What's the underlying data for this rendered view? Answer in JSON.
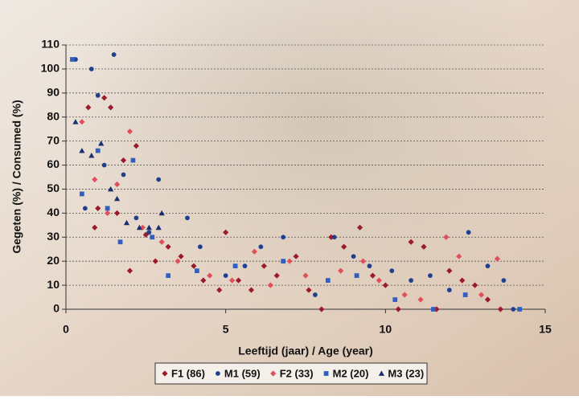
{
  "chart_data": {
    "type": "scatter",
    "xlabel": "Leeftijd (jaar)  / Age (year)",
    "ylabel": "Gegeten (%) / Consumed (%)",
    "xlim": [
      0,
      15
    ],
    "xticks": [
      0,
      5,
      10,
      15
    ],
    "ylim": [
      0,
      110
    ],
    "yticks": [
      0,
      10,
      20,
      30,
      40,
      50,
      60,
      70,
      80,
      90,
      100,
      110
    ],
    "grid": true,
    "legend": "bottom",
    "series": [
      {
        "name": "F1 (86)",
        "color": "#9b1b2a",
        "marker": "diamond",
        "x": [
          0.7,
          0.9,
          1.0,
          1.2,
          1.4,
          1.6,
          1.8,
          2.0,
          2.2,
          2.5,
          2.8,
          3.2,
          3.6,
          4.0,
          4.3,
          4.8,
          5.0,
          5.4,
          5.8,
          6.2,
          6.6,
          7.2,
          7.6,
          8.0,
          8.3,
          8.7,
          9.2,
          9.6,
          10.0,
          10.4,
          10.8,
          11.2,
          11.6,
          12.0,
          12.4,
          12.8,
          13.2,
          13.6
        ],
        "values": [
          84,
          34,
          42,
          88,
          84,
          40,
          62,
          16,
          68,
          31,
          20,
          26,
          22,
          18,
          12,
          8,
          32,
          12,
          8,
          18,
          14,
          22,
          8,
          0,
          30,
          26,
          34,
          14,
          10,
          0,
          28,
          26,
          0,
          16,
          12,
          10,
          4,
          0
        ]
      },
      {
        "name": "M1 (59)",
        "color": "#1f3f8f",
        "marker": "circle",
        "x": [
          0.3,
          0.6,
          0.8,
          1.0,
          1.2,
          1.5,
          1.8,
          2.2,
          2.6,
          2.9,
          3.8,
          4.2,
          5.0,
          5.6,
          6.1,
          6.8,
          7.8,
          8.4,
          9.0,
          9.5,
          10.2,
          10.8,
          11.4,
          12.0,
          12.6,
          13.2,
          13.7,
          14.0
        ],
        "values": [
          104,
          42,
          100,
          89,
          60,
          106,
          56,
          38,
          32,
          54,
          38,
          26,
          14,
          18,
          26,
          30,
          6,
          30,
          22,
          18,
          16,
          12,
          14,
          8,
          32,
          18,
          12,
          0
        ]
      },
      {
        "name": "F2 (33)",
        "color": "#e0505a",
        "marker": "diamond",
        "x": [
          0.5,
          0.9,
          1.3,
          1.6,
          2.0,
          2.4,
          3.0,
          3.5,
          4.5,
          5.2,
          5.9,
          6.4,
          7.0,
          7.5,
          8.6,
          9.3,
          9.8,
          10.6,
          11.1,
          11.9,
          12.3,
          13.0,
          13.5
        ],
        "values": [
          78,
          54,
          40,
          52,
          74,
          34,
          28,
          20,
          14,
          12,
          24,
          10,
          20,
          14,
          16,
          20,
          12,
          6,
          4,
          30,
          22,
          6,
          21
        ]
      },
      {
        "name": "M2 (20)",
        "color": "#2f5fc0",
        "marker": "square",
        "x": [
          0.2,
          0.5,
          1.0,
          1.3,
          1.7,
          2.1,
          2.7,
          3.2,
          4.1,
          5.3,
          6.8,
          8.2,
          9.1,
          10.3,
          11.5,
          12.5,
          14.2
        ],
        "values": [
          104,
          48,
          66,
          42,
          28,
          62,
          30,
          14,
          16,
          18,
          20,
          12,
          14,
          4,
          0,
          6,
          0
        ]
      },
      {
        "name": "M3 (23)",
        "color": "#1a2f6f",
        "marker": "triangle",
        "x": [
          0.3,
          0.5,
          0.8,
          1.1,
          1.4,
          1.6,
          1.9,
          2.3,
          2.6,
          2.9,
          3.0
        ],
        "values": [
          78,
          66,
          64,
          69,
          50,
          46,
          36,
          34,
          34,
          34,
          40
        ]
      }
    ]
  }
}
